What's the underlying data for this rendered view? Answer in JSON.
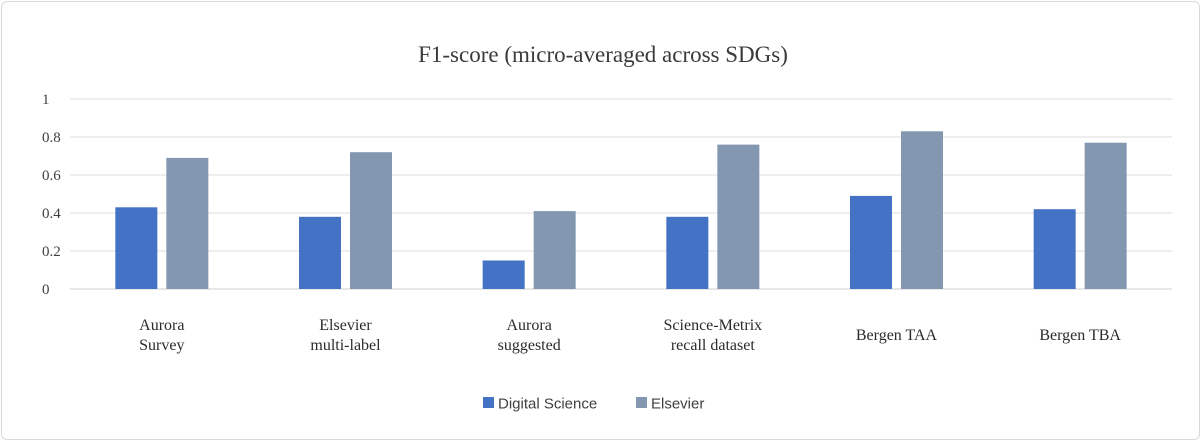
{
  "chart_data": {
    "type": "bar",
    "title": "F1-score (micro-averaged across SDGs)",
    "xlabel": "",
    "ylabel": "",
    "ylim": [
      0,
      1
    ],
    "yticks": [
      0,
      0.2,
      0.4,
      0.6,
      0.8,
      1
    ],
    "ytick_labels": [
      "0",
      "0.2",
      "0.4",
      "0.6",
      "0.8",
      "1"
    ],
    "grid": true,
    "legend_position": "bottom",
    "categories": [
      [
        "Aurora",
        "Survey"
      ],
      [
        "Elsevier",
        "multi-label"
      ],
      [
        "Aurora",
        "suggested"
      ],
      [
        "Science-Metrix",
        "recall dataset"
      ],
      [
        "Bergen TAA"
      ],
      [
        "Bergen TBA"
      ]
    ],
    "series": [
      {
        "name": "Digital Science",
        "color": "#4472c4",
        "values": [
          0.43,
          0.38,
          0.15,
          0.38,
          0.49,
          0.42
        ]
      },
      {
        "name": "Elsevier",
        "color": "#8497b0",
        "values": [
          0.69,
          0.72,
          0.41,
          0.76,
          0.83,
          0.77
        ]
      }
    ]
  }
}
